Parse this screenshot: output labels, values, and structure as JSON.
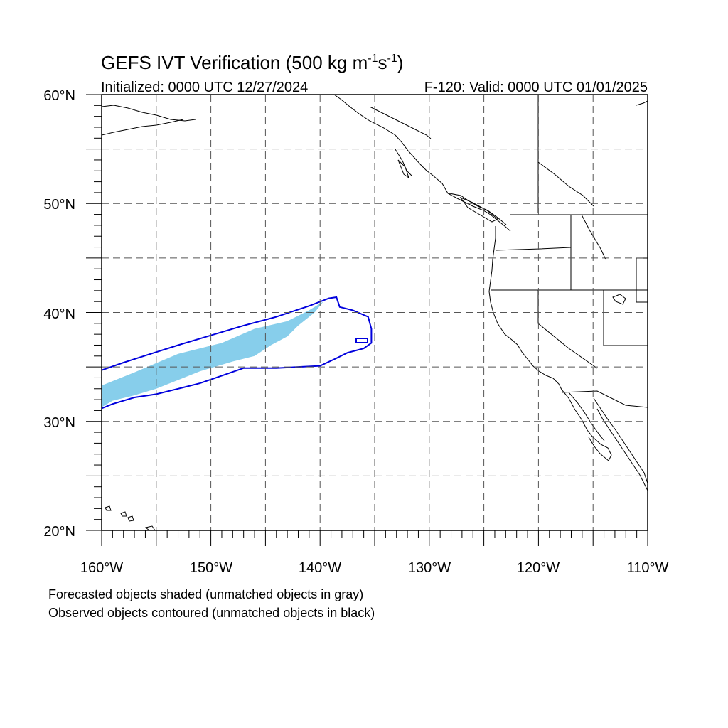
{
  "title": {
    "main_prefix": "GEFS IVT Verification (500 kg m",
    "exp1": "-1",
    "mid": "s",
    "exp2": "-1",
    "suffix": ")"
  },
  "subtitle_left": "Initialized: 0000 UTC 12/27/2024",
  "subtitle_right": "F-120: Valid: 0000 UTC 01/01/2025",
  "axes": {
    "lon_range": [
      -160,
      -110
    ],
    "lat_range": [
      20,
      60
    ],
    "lat_labels": [
      "60°N",
      "50°N",
      "40°N",
      "30°N",
      "20°N"
    ],
    "lon_labels": [
      "160°W",
      "150°W",
      "140°W",
      "130°W",
      "120°W",
      "110°W"
    ],
    "grid": "dashed, every 5 degrees"
  },
  "legend": {
    "line1": "Forecasted objects shaded (unmatched objects in gray)",
    "line2": "Observed objects contoured (unmatched objects in black)"
  },
  "colors": {
    "forecast_fill": "#87ceeb",
    "observed_contour": "#0000dd",
    "coastline": "#000000",
    "grid": "#555555"
  },
  "features": {
    "forecast_object": {
      "description": "matched forecast IVT object",
      "polygon_lonlat": [
        [
          -160,
          31.3
        ],
        [
          -160,
          33.3
        ],
        [
          -157,
          34.5
        ],
        [
          -153,
          36.2
        ],
        [
          -149,
          37.2
        ],
        [
          -146,
          38.5
        ],
        [
          -143,
          39.2
        ],
        [
          -141,
          40.2
        ],
        [
          -139.7,
          41.0
        ],
        [
          -140.5,
          40.0
        ],
        [
          -142,
          38.8
        ],
        [
          -143,
          37.8
        ],
        [
          -144.5,
          37.0
        ],
        [
          -146,
          36.0
        ],
        [
          -148,
          35.5
        ],
        [
          -151,
          34.6
        ],
        [
          -153,
          33.8
        ],
        [
          -155,
          33.0
        ],
        [
          -157,
          32.4
        ],
        [
          -159,
          31.9
        ]
      ]
    },
    "observed_object": {
      "description": "matched observed IVT object contour",
      "polygon_lonlat": [
        [
          -160,
          34.7
        ],
        [
          -158,
          35.4
        ],
        [
          -155.5,
          36.2
        ],
        [
          -153,
          37.0
        ],
        [
          -150,
          37.9
        ],
        [
          -147,
          38.8
        ],
        [
          -144,
          39.6
        ],
        [
          -141,
          40.6
        ],
        [
          -139.2,
          41.3
        ],
        [
          -138.5,
          41.4
        ],
        [
          -138.2,
          40.5
        ],
        [
          -137,
          40.2
        ],
        [
          -135.6,
          39.6
        ],
        [
          -135.3,
          38.5
        ],
        [
          -135.3,
          37.2
        ],
        [
          -136,
          36.7
        ],
        [
          -137.5,
          36.3
        ],
        [
          -138.5,
          35.8
        ],
        [
          -140,
          35.1
        ],
        [
          -142,
          35.0
        ],
        [
          -144,
          34.9
        ],
        [
          -147,
          34.9
        ],
        [
          -149,
          34.2
        ],
        [
          -151,
          33.5
        ],
        [
          -153,
          33.0
        ],
        [
          -155,
          32.5
        ],
        [
          -157,
          32.2
        ],
        [
          -159,
          31.6
        ],
        [
          -160,
          31.2
        ]
      ]
    }
  }
}
